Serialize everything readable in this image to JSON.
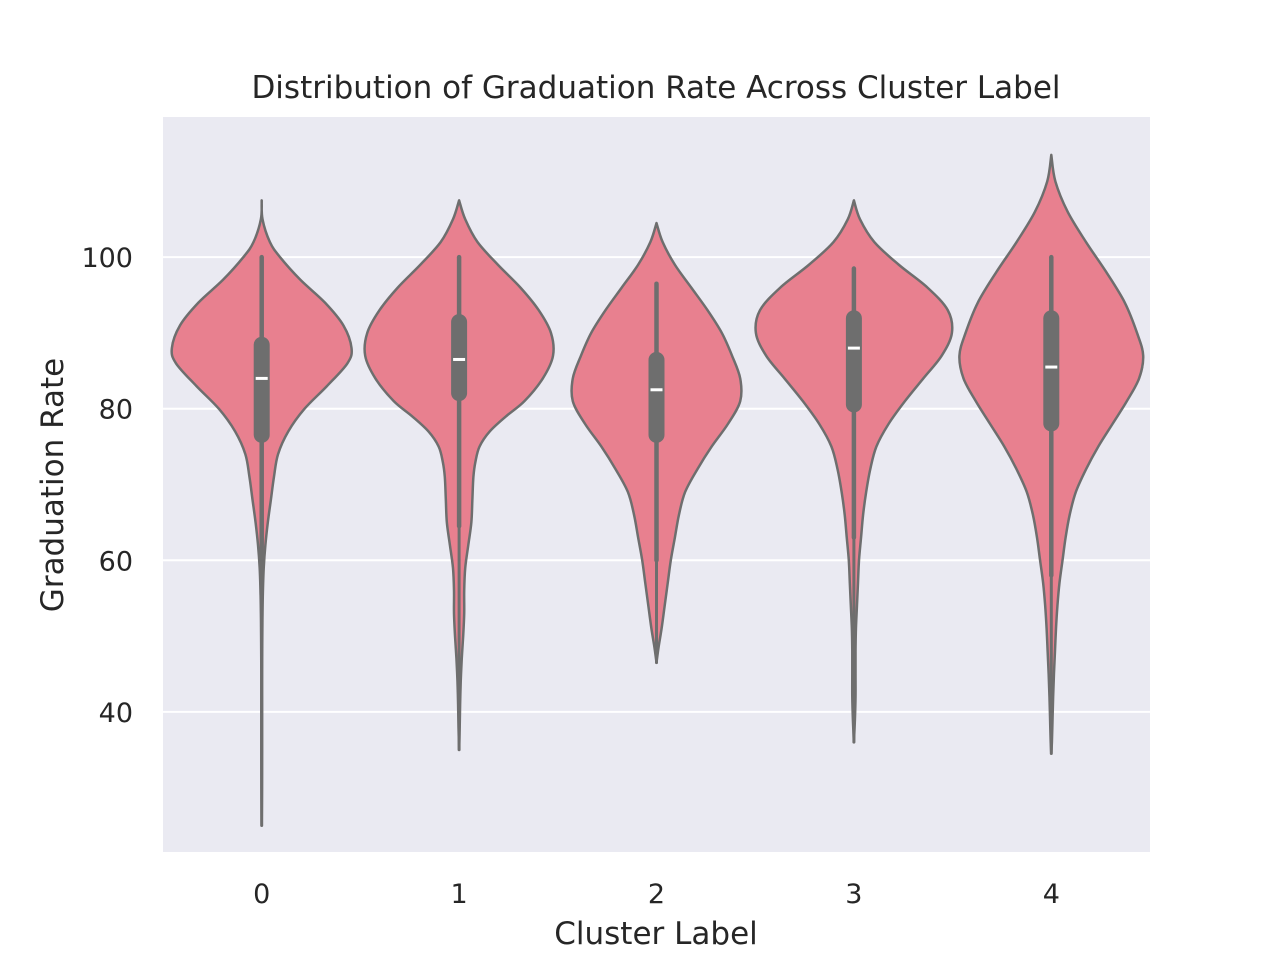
{
  "chart_data": {
    "type": "violin",
    "title": "Distribution of Graduation Rate Across Cluster Label",
    "xlabel": "Cluster Label",
    "ylabel": "Graduation Rate",
    "ylim": [
      21.5,
      118.5
    ],
    "yticks": [
      40,
      60,
      80,
      100
    ],
    "grid": true,
    "colors": {
      "violin_fill": "#e8808f",
      "violin_edge": "#6e6e6e",
      "box": "#6e6e6e",
      "median": "#ffffff",
      "plot_bg": "#eaeaf2",
      "grid": "#ffffff"
    },
    "categories": [
      "0",
      "1",
      "2",
      "3",
      "4"
    ],
    "violins": [
      {
        "label": "0",
        "min": 25,
        "q1": 75.5,
        "median": 84,
        "q3": 89.5,
        "max": 100,
        "whisker_low": 55.5,
        "whisker_high": 100,
        "profile": [
          [
            107.5,
            0
          ],
          [
            105,
            0.4
          ],
          [
            102,
            4
          ],
          [
            100,
            9
          ],
          [
            97,
            19
          ],
          [
            94,
            31
          ],
          [
            91,
            40
          ],
          [
            88,
            44
          ],
          [
            86,
            42
          ],
          [
            83,
            32
          ],
          [
            80,
            21
          ],
          [
            77,
            13
          ],
          [
            74,
            8
          ],
          [
            71,
            6
          ],
          [
            68,
            4.5
          ],
          [
            65,
            3
          ],
          [
            62,
            1.8
          ],
          [
            59,
            1
          ],
          [
            56,
            0.6
          ],
          [
            53,
            0.4
          ],
          [
            50,
            0.3
          ],
          [
            45,
            0.2
          ],
          [
            40,
            0.2
          ],
          [
            35,
            0.2
          ],
          [
            30,
            0.15
          ],
          [
            25,
            0
          ]
        ]
      },
      {
        "label": "1",
        "min": 35,
        "q1": 81,
        "median": 86.5,
        "q3": 92.5,
        "max": 100,
        "whisker_low": 64.5,
        "whisker_high": 100,
        "profile": [
          [
            107.5,
            0
          ],
          [
            105,
            3
          ],
          [
            102,
            9
          ],
          [
            99,
            19
          ],
          [
            96,
            30
          ],
          [
            93,
            39
          ],
          [
            90,
            45
          ],
          [
            87,
            46
          ],
          [
            84,
            41
          ],
          [
            81,
            32
          ],
          [
            79,
            23
          ],
          [
            77,
            15
          ],
          [
            75,
            10
          ],
          [
            73,
            8
          ],
          [
            71,
            7
          ],
          [
            68,
            6.5
          ],
          [
            65,
            6
          ],
          [
            62,
            4.5
          ],
          [
            59,
            3
          ],
          [
            56,
            2.5
          ],
          [
            53,
            2.5
          ],
          [
            50,
            2
          ],
          [
            47,
            1.3
          ],
          [
            44,
            0.8
          ],
          [
            41,
            0.5
          ],
          [
            38,
            0.3
          ],
          [
            35,
            0
          ]
        ]
      },
      {
        "label": "2",
        "min": 46.5,
        "q1": 75.5,
        "median": 82.5,
        "q3": 87.5,
        "max": 96.5,
        "whisker_low": 60,
        "whisker_high": 96.5,
        "profile": [
          [
            104.5,
            0
          ],
          [
            102,
            3
          ],
          [
            99,
            9
          ],
          [
            96,
            17
          ],
          [
            93,
            25
          ],
          [
            90,
            32
          ],
          [
            87,
            37
          ],
          [
            84,
            41
          ],
          [
            81,
            41
          ],
          [
            78,
            35
          ],
          [
            75,
            27
          ],
          [
            72,
            20
          ],
          [
            69,
            14
          ],
          [
            66,
            11
          ],
          [
            63,
            9
          ],
          [
            60,
            7
          ],
          [
            57,
            5.5
          ],
          [
            54,
            4
          ],
          [
            51,
            2.5
          ],
          [
            48.5,
            1
          ],
          [
            46.5,
            0
          ]
        ]
      },
      {
        "label": "3",
        "min": 36,
        "q1": 79.5,
        "median": 88,
        "q3": 93,
        "max": 98.5,
        "whisker_low": 63,
        "whisker_high": 98.5,
        "profile": [
          [
            107.5,
            0
          ],
          [
            105,
            3
          ],
          [
            102,
            10
          ],
          [
            99,
            22
          ],
          [
            96,
            36
          ],
          [
            93,
            46
          ],
          [
            90,
            48
          ],
          [
            87,
            43
          ],
          [
            84,
            34
          ],
          [
            81,
            25
          ],
          [
            78,
            17
          ],
          [
            75,
            11
          ],
          [
            72,
            8
          ],
          [
            69,
            6
          ],
          [
            66,
            4.5
          ],
          [
            63,
            3.5
          ],
          [
            60,
            2.5
          ],
          [
            57,
            2
          ],
          [
            54,
            1.5
          ],
          [
            51,
            1
          ],
          [
            48,
            0.8
          ],
          [
            45,
            0.8
          ],
          [
            42,
            0.8
          ],
          [
            39,
            0.5
          ],
          [
            36,
            0
          ]
        ]
      },
      {
        "label": "4",
        "min": 34.5,
        "q1": 77,
        "median": 85.5,
        "q3": 93,
        "max": 100,
        "whisker_low": 58,
        "whisker_high": 100,
        "profile": [
          [
            113.5,
            0
          ],
          [
            110,
            2
          ],
          [
            106,
            8
          ],
          [
            102,
            17
          ],
          [
            98,
            27
          ],
          [
            94,
            36
          ],
          [
            90,
            42
          ],
          [
            87,
            45
          ],
          [
            84,
            43
          ],
          [
            81,
            37
          ],
          [
            78,
            30
          ],
          [
            75,
            23
          ],
          [
            72,
            17
          ],
          [
            69,
            12
          ],
          [
            66,
            9
          ],
          [
            63,
            7
          ],
          [
            60,
            5.5
          ],
          [
            57,
            4
          ],
          [
            54,
            3
          ],
          [
            51,
            2.3
          ],
          [
            48,
            1.8
          ],
          [
            45,
            1.3
          ],
          [
            42,
            0.9
          ],
          [
            39,
            0.6
          ],
          [
            36,
            0.3
          ],
          [
            34.5,
            0
          ]
        ]
      }
    ]
  }
}
